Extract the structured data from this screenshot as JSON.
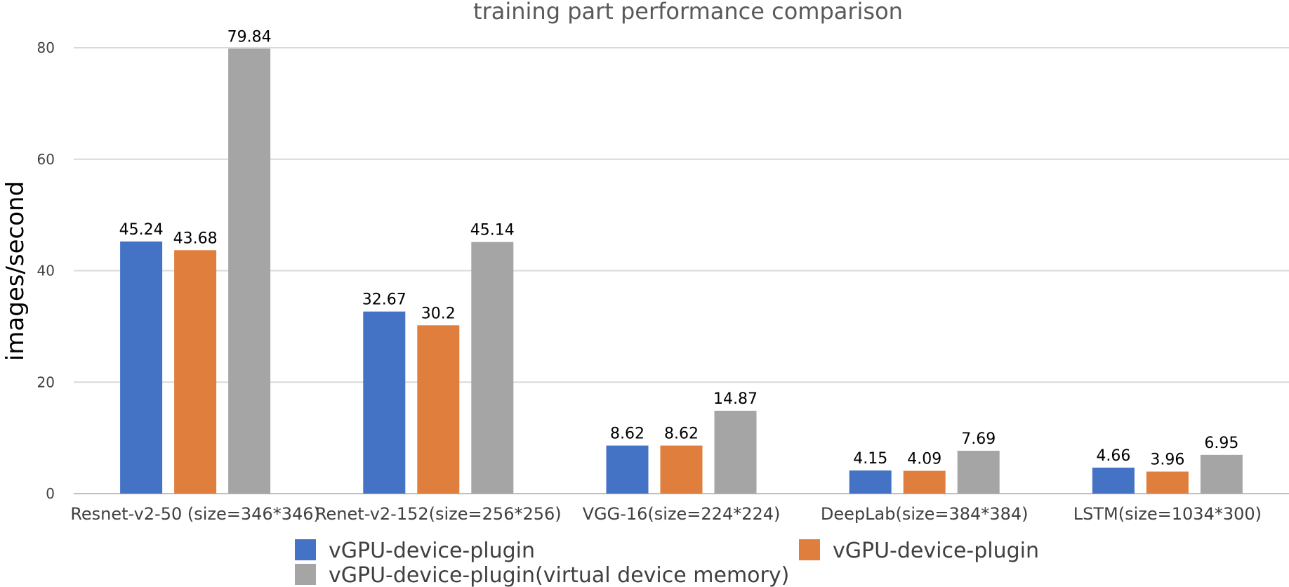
{
  "chart_data": {
    "type": "bar",
    "title": "training part performance comparison",
    "xlabel": "",
    "ylabel": "images/second",
    "ylim": [
      0,
      80
    ],
    "yticks": [
      0,
      20,
      40,
      60,
      80
    ],
    "grid": true,
    "legend_position": "bottom",
    "categories": [
      "Resnet-v2-50 (size=346*346)",
      "Renet-v2-152(size=256*256)",
      "VGG-16(size=224*224)",
      "DeepLab(size=384*384)",
      "LSTM(size=1034*300)"
    ],
    "series": [
      {
        "name": "vGPU-device-plugin",
        "color": "#4472c4",
        "values": [
          45.24,
          32.67,
          8.62,
          4.15,
          4.66
        ]
      },
      {
        "name": "vGPU-device-plugin",
        "color": "#e07f3d",
        "values": [
          43.68,
          30.2,
          8.62,
          4.09,
          3.96
        ]
      },
      {
        "name": "vGPU-device-plugin(virtual device memory)",
        "color": "#a5a5a5",
        "values": [
          79.84,
          45.14,
          14.87,
          7.69,
          6.95
        ]
      }
    ]
  }
}
